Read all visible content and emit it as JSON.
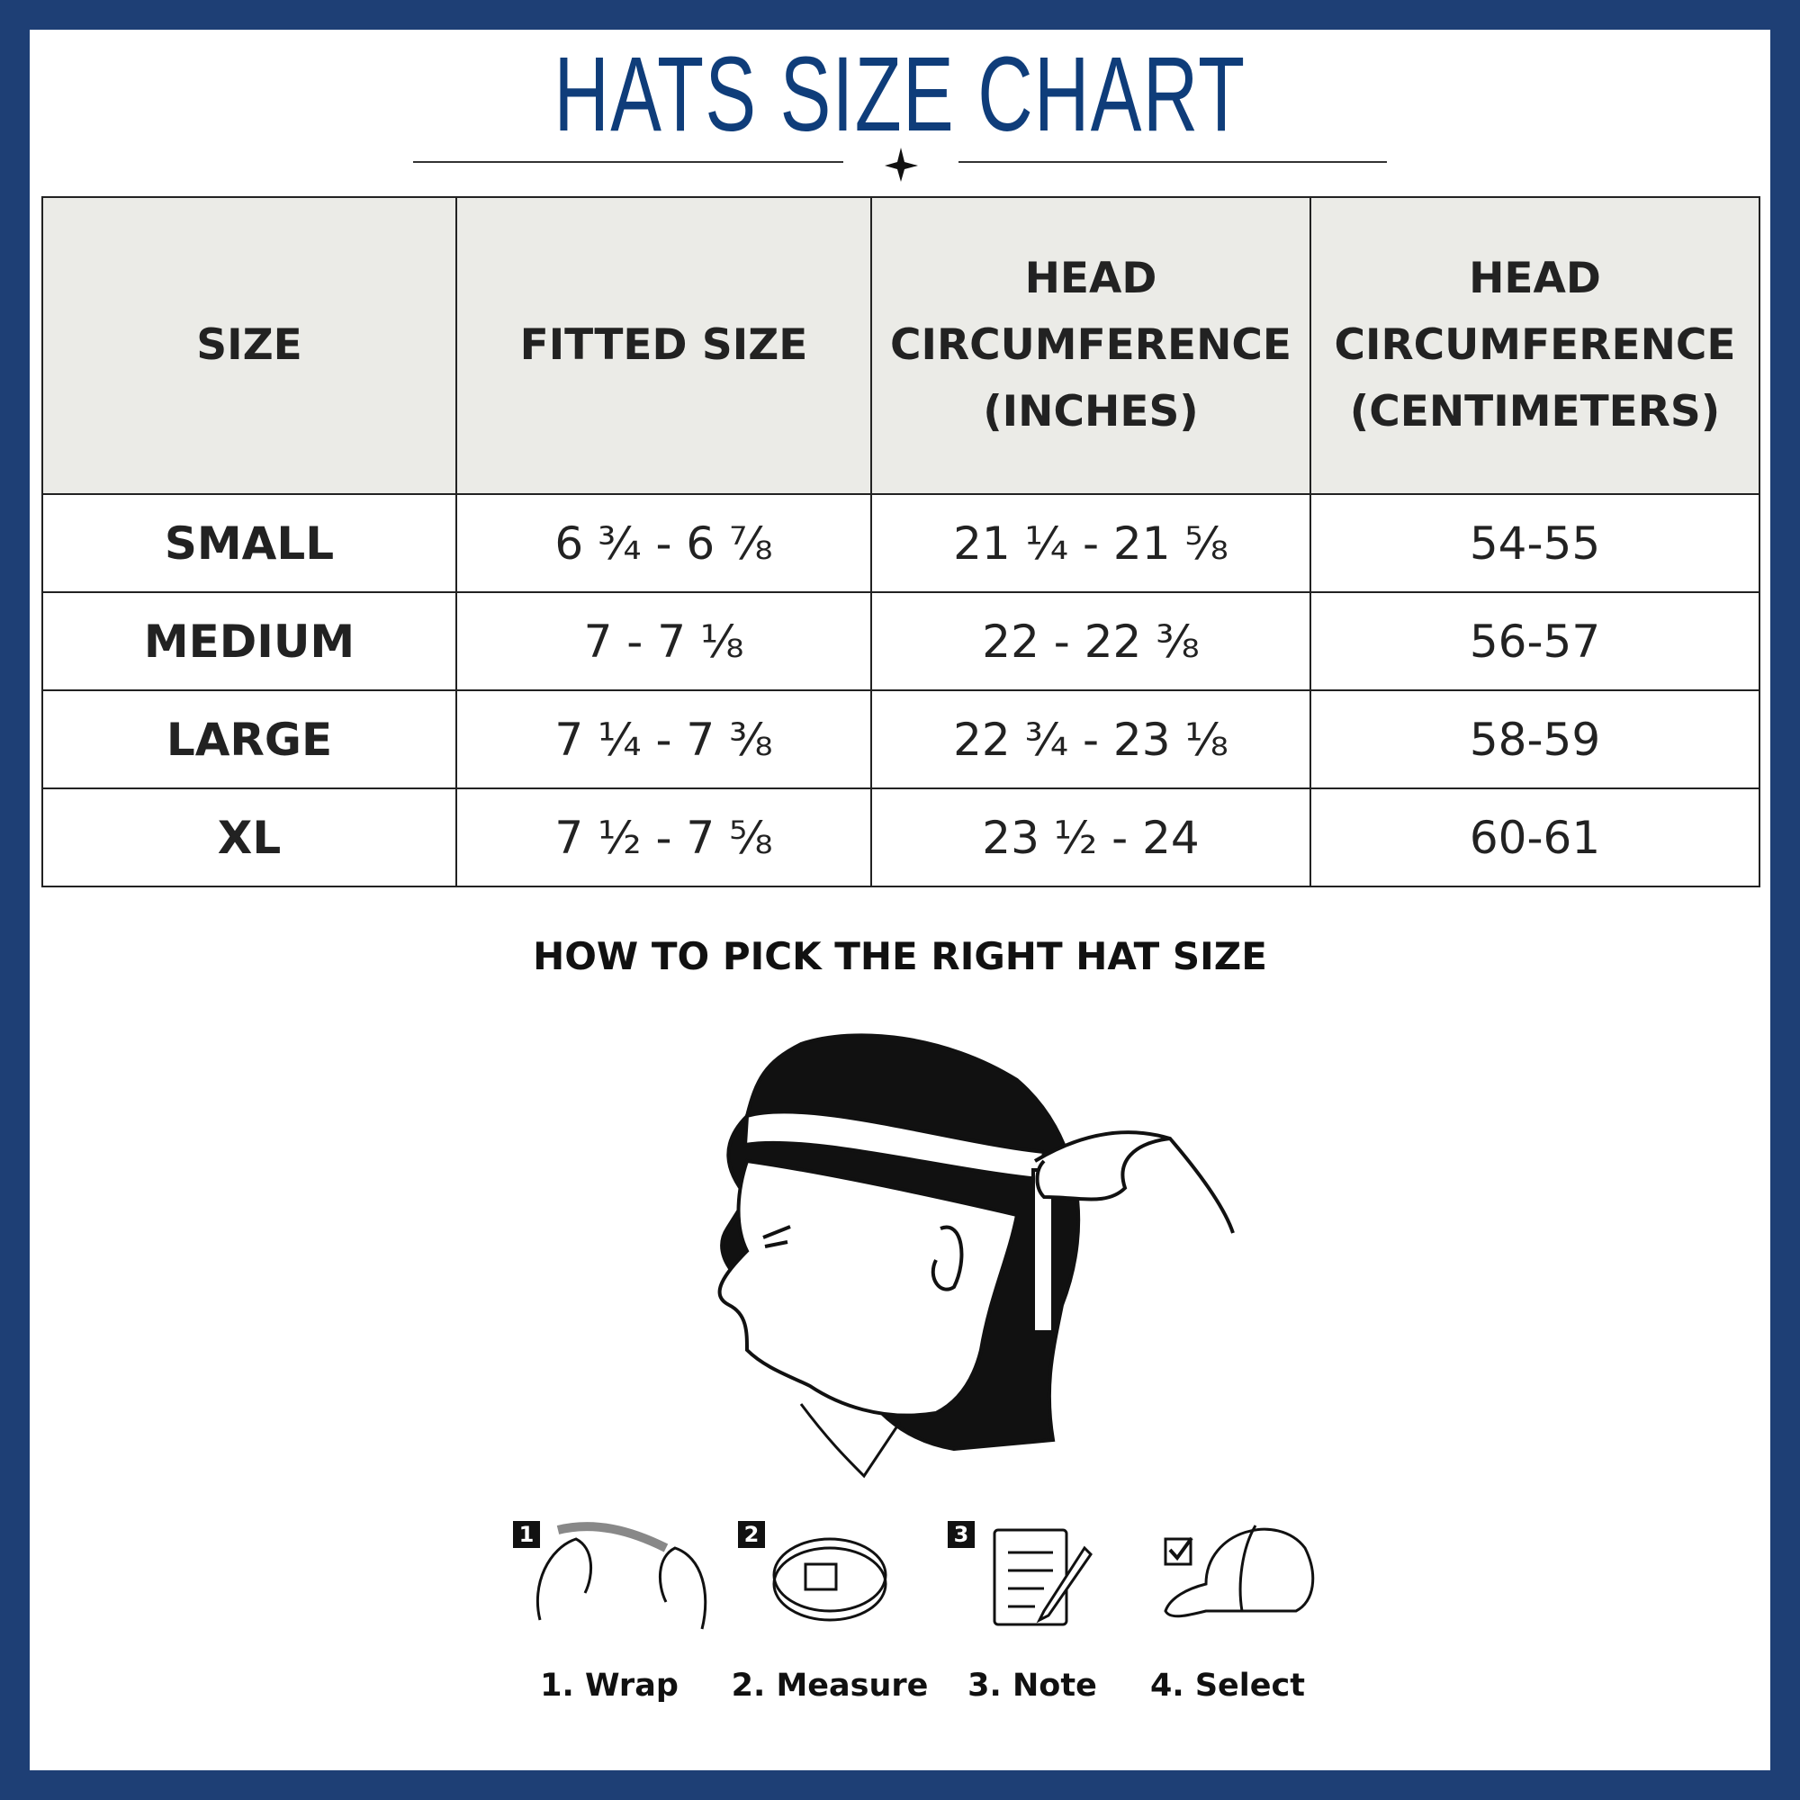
{
  "title": "HATS SIZE CHART",
  "table": {
    "header": [
      [
        "SIZE"
      ],
      [
        "FITTED SIZE"
      ],
      [
        "HEAD",
        "CIRCUMFERENCE",
        "(INCHES)"
      ],
      [
        "HEAD",
        "CIRCUMFERENCE",
        "(CENTIMETERS)"
      ]
    ],
    "rows": [
      [
        "SMALL",
        "6 ¾ - 6 ⅞",
        "21 ¼ - 21 ⅝",
        "54-55"
      ],
      [
        "MEDIUM",
        "7 - 7 ⅛",
        "22 - 22 ⅜",
        "56-57"
      ],
      [
        "LARGE",
        "7 ¼ - 7 ⅜",
        "22 ¾ - 23 ⅛",
        "58-59"
      ],
      [
        "XL",
        "7 ½ - 7 ⅝",
        "23 ½ - 24",
        "60-61"
      ]
    ]
  },
  "guide": {
    "heading": "HOW TO PICK THE RIGHT HAT SIZE",
    "badges": [
      "1",
      "2",
      "3"
    ],
    "steps": [
      "1. Wrap",
      "2. Measure",
      "3. Note",
      "4. Select"
    ]
  }
}
